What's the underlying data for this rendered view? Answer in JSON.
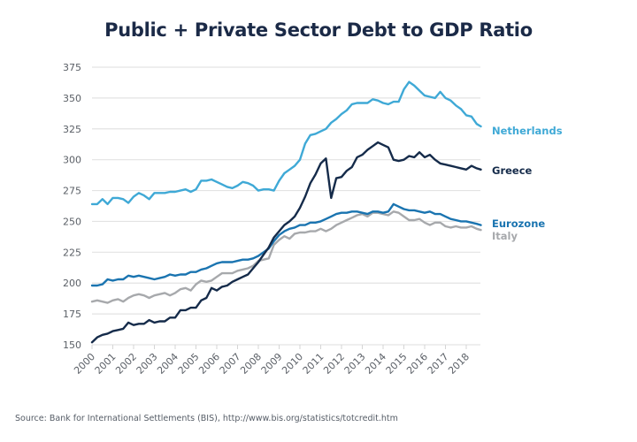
{
  "chart_data": {
    "type": "line",
    "title": "Public + Private Sector Debt to GDP Ratio",
    "xlabel": "",
    "ylabel": "",
    "source": "Source: Bank for International Settlements (BIS), http://www.bis.org/statistics/totcredit.htm",
    "xlim": [
      2000,
      2018.7
    ],
    "ylim": [
      150,
      375
    ],
    "yticks": [
      150,
      175,
      200,
      225,
      250,
      275,
      300,
      325,
      350,
      375
    ],
    "xticks": [
      "2000",
      "2001",
      "2002",
      "2003",
      "2004",
      "2005",
      "2006",
      "2007",
      "2008",
      "2009",
      "2010",
      "2011",
      "2012",
      "2013",
      "2014",
      "2015",
      "2016",
      "2017",
      "2018"
    ],
    "grid": "horizontal",
    "legend": "right (direct labels at line ends)",
    "series": [
      {
        "name": "Netherlands",
        "color": "#3fa9d6",
        "x": [
          2000,
          2000.25,
          2000.5,
          2000.75,
          2001,
          2001.25,
          2001.5,
          2001.75,
          2002,
          2002.25,
          2002.5,
          2002.75,
          2003,
          2003.25,
          2003.5,
          2003.75,
          2004,
          2004.25,
          2004.5,
          2004.75,
          2005,
          2005.25,
          2005.5,
          2005.75,
          2006,
          2006.25,
          2006.5,
          2006.75,
          2007,
          2007.25,
          2007.5,
          2007.75,
          2008,
          2008.25,
          2008.5,
          2008.75,
          2009,
          2009.25,
          2009.5,
          2009.75,
          2010,
          2010.25,
          2010.5,
          2010.75,
          2011,
          2011.25,
          2011.5,
          2011.75,
          2012,
          2012.25,
          2012.5,
          2012.75,
          2013,
          2013.25,
          2013.5,
          2013.75,
          2014,
          2014.25,
          2014.5,
          2014.75,
          2015,
          2015.25,
          2015.5,
          2015.75,
          2016,
          2016.25,
          2016.5,
          2016.75,
          2017,
          2017.25,
          2017.5,
          2017.75,
          2018,
          2018.25,
          2018.5,
          2018.7
        ],
        "values": [
          264,
          264,
          268,
          264,
          269,
          269,
          268,
          265,
          270,
          273,
          271,
          268,
          273,
          273,
          273,
          274,
          274,
          275,
          276,
          274,
          276,
          283,
          283,
          284,
          282,
          280,
          278,
          277,
          279,
          282,
          281,
          279,
          275,
          276,
          276,
          275,
          283,
          289,
          292,
          295,
          300,
          313,
          320,
          321,
          323,
          325,
          330,
          333,
          337,
          340,
          345,
          346,
          346,
          346,
          349,
          348,
          346,
          345,
          347,
          347,
          357,
          363,
          360,
          356,
          352,
          351,
          350,
          355,
          350,
          348,
          344,
          341,
          336,
          335,
          329,
          327
        ]
      },
      {
        "name": "Greece",
        "color": "#152b4a",
        "x": [
          2000,
          2000.25,
          2000.5,
          2000.75,
          2001,
          2001.25,
          2001.5,
          2001.75,
          2002,
          2002.25,
          2002.5,
          2002.75,
          2003,
          2003.25,
          2003.5,
          2003.75,
          2004,
          2004.25,
          2004.5,
          2004.75,
          2005,
          2005.25,
          2005.5,
          2005.75,
          2006,
          2006.25,
          2006.5,
          2006.75,
          2007,
          2007.25,
          2007.5,
          2007.75,
          2008,
          2008.25,
          2008.5,
          2008.75,
          2009,
          2009.25,
          2009.5,
          2009.75,
          2010,
          2010.25,
          2010.5,
          2010.75,
          2011,
          2011.25,
          2011.5,
          2011.75,
          2012,
          2012.25,
          2012.5,
          2012.75,
          2013,
          2013.25,
          2013.5,
          2013.75,
          2014,
          2014.25,
          2014.5,
          2014.75,
          2015,
          2015.25,
          2015.5,
          2015.75,
          2016,
          2016.25,
          2016.5,
          2016.75,
          2017,
          2017.25,
          2017.5,
          2017.75,
          2018,
          2018.25,
          2018.5,
          2018.7
        ],
        "values": [
          152,
          156,
          158,
          159,
          161,
          162,
          163,
          168,
          166,
          167,
          167,
          170,
          168,
          169,
          169,
          172,
          172,
          178,
          178,
          180,
          180,
          186,
          188,
          196,
          194,
          197,
          198,
          201,
          203,
          205,
          207,
          212,
          217,
          223,
          229,
          237,
          242,
          247,
          250,
          254,
          261,
          270,
          281,
          288,
          297,
          301,
          269,
          285,
          286,
          291,
          294,
          302,
          304,
          308,
          311,
          314,
          312,
          310,
          300,
          299,
          300,
          303,
          302,
          306,
          302,
          304,
          300,
          297,
          296,
          295,
          294,
          293,
          292,
          295,
          293,
          292
        ]
      },
      {
        "name": "Eurozone",
        "color": "#1a74b0",
        "x": [
          2000,
          2000.25,
          2000.5,
          2000.75,
          2001,
          2001.25,
          2001.5,
          2001.75,
          2002,
          2002.25,
          2002.5,
          2002.75,
          2003,
          2003.25,
          2003.5,
          2003.75,
          2004,
          2004.25,
          2004.5,
          2004.75,
          2005,
          2005.25,
          2005.5,
          2005.75,
          2006,
          2006.25,
          2006.5,
          2006.75,
          2007,
          2007.25,
          2007.5,
          2007.75,
          2008,
          2008.25,
          2008.5,
          2008.75,
          2009,
          2009.25,
          2009.5,
          2009.75,
          2010,
          2010.25,
          2010.5,
          2010.75,
          2011,
          2011.25,
          2011.5,
          2011.75,
          2012,
          2012.25,
          2012.5,
          2012.75,
          2013,
          2013.25,
          2013.5,
          2013.75,
          2014,
          2014.25,
          2014.5,
          2014.75,
          2015,
          2015.25,
          2015.5,
          2015.75,
          2016,
          2016.25,
          2016.5,
          2016.75,
          2017,
          2017.25,
          2017.5,
          2017.75,
          2018,
          2018.25,
          2018.5,
          2018.7
        ],
        "values": [
          198,
          198,
          199,
          203,
          202,
          203,
          203,
          206,
          205,
          206,
          205,
          204,
          203,
          204,
          205,
          207,
          206,
          207,
          207,
          209,
          209,
          211,
          212,
          214,
          216,
          217,
          217,
          217,
          218,
          219,
          219,
          220,
          222,
          225,
          228,
          234,
          239,
          242,
          244,
          245,
          247,
          247,
          249,
          249,
          250,
          252,
          254,
          256,
          257,
          257,
          258,
          258,
          257,
          256,
          258,
          258,
          257,
          258,
          264,
          262,
          260,
          259,
          259,
          258,
          257,
          258,
          256,
          256,
          254,
          252,
          251,
          250,
          250,
          249,
          248,
          247
        ]
      },
      {
        "name": "Italy",
        "color": "#a7a9ac",
        "x": [
          2000,
          2000.25,
          2000.5,
          2000.75,
          2001,
          2001.25,
          2001.5,
          2001.75,
          2002,
          2002.25,
          2002.5,
          2002.75,
          2003,
          2003.25,
          2003.5,
          2003.75,
          2004,
          2004.25,
          2004.5,
          2004.75,
          2005,
          2005.25,
          2005.5,
          2005.75,
          2006,
          2006.25,
          2006.5,
          2006.75,
          2007,
          2007.25,
          2007.5,
          2007.75,
          2008,
          2008.25,
          2008.5,
          2008.75,
          2009,
          2009.25,
          2009.5,
          2009.75,
          2010,
          2010.25,
          2010.5,
          2010.75,
          2011,
          2011.25,
          2011.5,
          2011.75,
          2012,
          2012.25,
          2012.5,
          2012.75,
          2013,
          2013.25,
          2013.5,
          2013.75,
          2014,
          2014.25,
          2014.5,
          2014.75,
          2015,
          2015.25,
          2015.5,
          2015.75,
          2016,
          2016.25,
          2016.5,
          2016.75,
          2017,
          2017.25,
          2017.5,
          2017.75,
          2018,
          2018.25,
          2018.5,
          2018.7
        ],
        "values": [
          185,
          186,
          185,
          184,
          186,
          187,
          185,
          188,
          190,
          191,
          190,
          188,
          190,
          191,
          192,
          190,
          192,
          195,
          196,
          194,
          199,
          202,
          201,
          202,
          205,
          208,
          208,
          208,
          210,
          211,
          212,
          214,
          218,
          219,
          220,
          231,
          235,
          238,
          236,
          240,
          241,
          241,
          242,
          242,
          244,
          242,
          244,
          247,
          249,
          251,
          253,
          255,
          256,
          254,
          257,
          257,
          256,
          255,
          258,
          257,
          254,
          251,
          251,
          252,
          249,
          247,
          249,
          249,
          246,
          245,
          246,
          245,
          245,
          246,
          244,
          243
        ]
      }
    ],
    "labels": {
      "Netherlands": 327,
      "Greece": 292,
      "Eurozone": 249,
      "Italy": 241
    }
  }
}
